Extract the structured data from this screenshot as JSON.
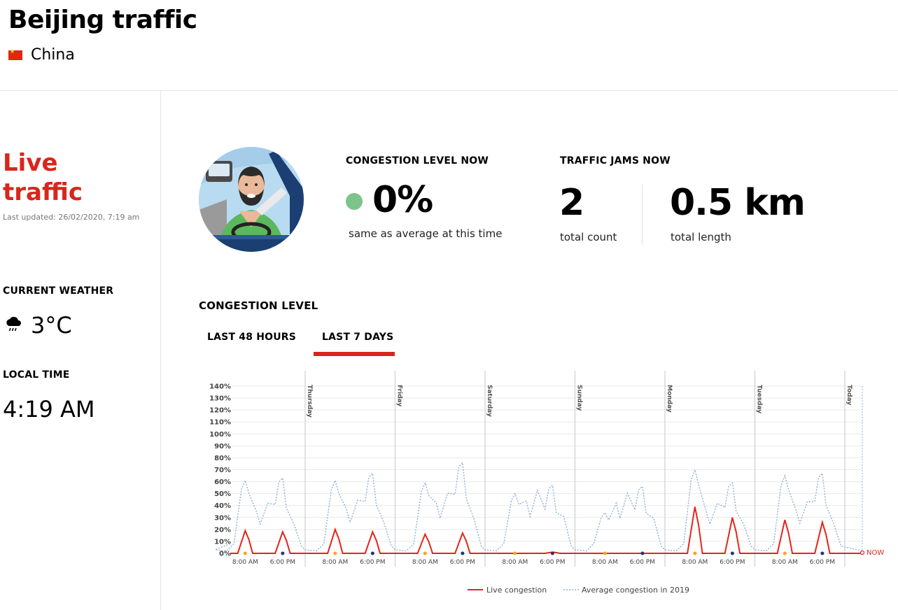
{
  "header": {
    "title": "Beijing traffic",
    "country": "China"
  },
  "sidebar": {
    "live_title": "Live traffic",
    "last_updated": "Last updated: 26/02/2020, 7:19 am",
    "weather_heading": "CURRENT WEATHER",
    "weather_value": "3°C",
    "weather_icon": "rain-cloud-icon",
    "time_heading": "LOCAL TIME",
    "time_value": "4:19 AM"
  },
  "kpis": {
    "congestion_heading": "CONGESTION LEVEL NOW",
    "congestion_value": "0%",
    "congestion_sub": "same as average at this time",
    "congestion_status_color": "#7cc38c",
    "jams_heading": "TRAFFIC JAMS NOW",
    "jams_count": "2",
    "jams_count_label": "total count",
    "jams_length": "0.5 km",
    "jams_length_label": "total length"
  },
  "section": {
    "heading": "CONGESTION LEVEL",
    "tabs": [
      "LAST 48 HOURS",
      "LAST 7 DAYS"
    ],
    "active_tab": "LAST 7 DAYS"
  },
  "chart_data": {
    "type": "line",
    "y_ticks": [
      "0%",
      "10%",
      "20%",
      "30%",
      "40%",
      "50%",
      "60%",
      "70%",
      "80%",
      "90%",
      "100%",
      "110%",
      "120%",
      "130%",
      "140%"
    ],
    "ylim": [
      0,
      140
    ],
    "grid": true,
    "day_labels": [
      "Thursday",
      "Friday",
      "Saturday",
      "Sunday",
      "Monday",
      "Tuesday",
      "Today"
    ],
    "hour_tick_labels": [
      "8:00 AM",
      "6:00 PM"
    ],
    "now_label": "NOW",
    "legend": [
      "Live congestion",
      "Average congestion in 2019"
    ],
    "legend_position": "bottom",
    "colors": {
      "live": "#e3251b",
      "average": "#8fb0d8",
      "grid": "#e9e9e9",
      "day_line": "#cfcfcf",
      "morning_dot": "#f5a623",
      "evening_dot": "#1b3a6b"
    },
    "series": [
      {
        "name": "Live congestion",
        "days": [
          {
            "morning": 19,
            "evening": 18
          },
          {
            "morning": 20,
            "evening": 18
          },
          {
            "morning": 16,
            "evening": 17
          },
          {
            "morning": 0,
            "evening": 1
          },
          {
            "morning": 0,
            "evening": 0
          },
          {
            "morning": 39,
            "evening": 30
          },
          {
            "morning": 28,
            "evening": 26
          }
        ]
      },
      {
        "name": "Average congestion in 2019",
        "days": [
          {
            "morning": 61,
            "midday": 35,
            "evening": 63
          },
          {
            "morning": 61,
            "midday": 37,
            "evening": 67
          },
          {
            "morning": 59,
            "midday": 42,
            "evening": 76
          },
          {
            "morning": 50,
            "midday": 44,
            "evening": 57
          },
          {
            "morning": 34,
            "midday": 42,
            "evening": 56
          },
          {
            "morning": 70,
            "midday": 35,
            "evening": 59
          },
          {
            "morning": 65,
            "midday": 36,
            "evening": 67
          }
        ]
      }
    ]
  }
}
